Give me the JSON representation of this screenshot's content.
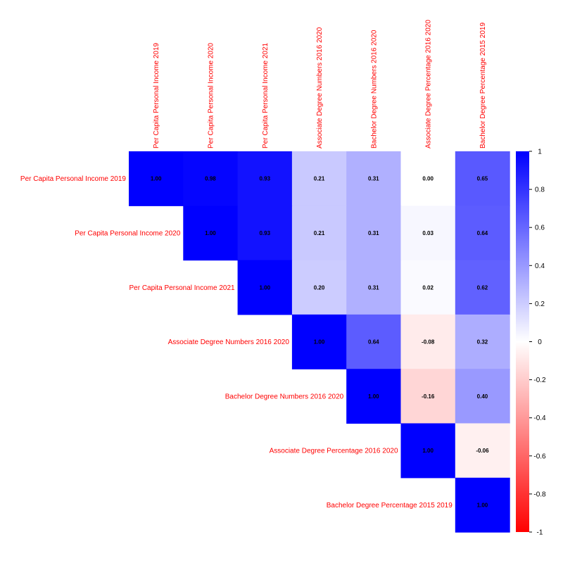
{
  "chart_data": {
    "type": "heatmap",
    "variables": [
      "Per Capita Personal Income 2019",
      "Per Capita Personal Income 2020",
      "Per Capita Personal Income 2021",
      "Associate Degree Numbers 2016 2020",
      "Bachelor Degree Numbers 2016 2020",
      "Associate Degree Percentage 2016 2020",
      "Bachelor Degree Percentage 2015 2019"
    ],
    "matrix_upper": [
      [
        1.0,
        0.98,
        0.93,
        0.21,
        0.31,
        0.0,
        0.65
      ],
      [
        null,
        1.0,
        0.93,
        0.21,
        0.31,
        0.03,
        0.64
      ],
      [
        null,
        null,
        1.0,
        0.2,
        0.31,
        0.02,
        0.62
      ],
      [
        null,
        null,
        null,
        1.0,
        0.64,
        -0.08,
        0.32
      ],
      [
        null,
        null,
        null,
        null,
        1.0,
        -0.16,
        0.4
      ],
      [
        null,
        null,
        null,
        null,
        null,
        1.0,
        -0.06
      ],
      [
        null,
        null,
        null,
        null,
        null,
        null,
        1.0
      ]
    ],
    "value_range": [
      -1,
      1
    ],
    "colorbar_ticks": [
      "1",
      "0.8",
      "0.6",
      "0.4",
      "0.2",
      "0",
      "-0.2",
      "-0.4",
      "-0.6",
      "-0.8",
      "-1"
    ],
    "color_scale": {
      "negative": "#ff0000",
      "zero": "#ffffff",
      "positive": "#0000ff"
    },
    "label_color": "#ff0000",
    "value_text_color": "#000000",
    "legend_placement": "right"
  }
}
